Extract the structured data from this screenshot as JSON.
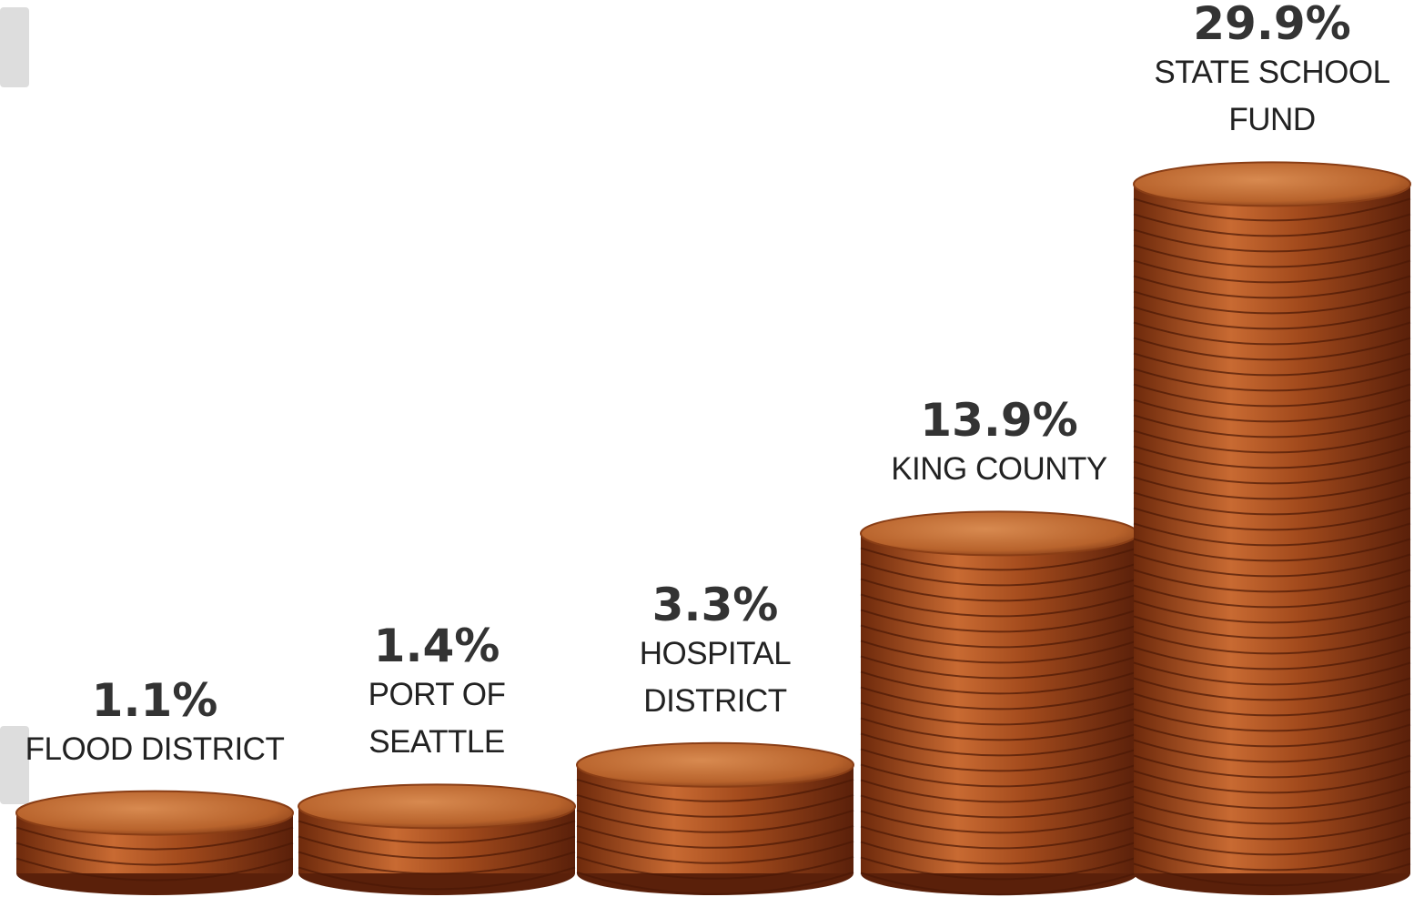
{
  "chart_data": {
    "type": "pictorial-bar",
    "categories": [
      "FLOOD DISTRICT",
      "PORT OF SEATTLE",
      "HOSPITAL DISTRICT",
      "KING COUNTY",
      "STATE SCHOOL FUND"
    ],
    "values": [
      1.1,
      1.4,
      3.3,
      13.9,
      29.9
    ],
    "value_labels": [
      "1.1%",
      "1.4%",
      "3.3%",
      "13.9%",
      "29.9%"
    ],
    "color": "#b5602a"
  }
}
